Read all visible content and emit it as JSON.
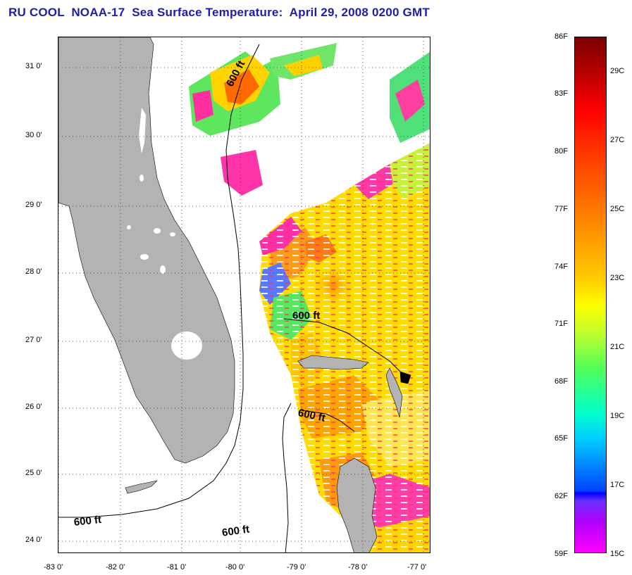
{
  "title": "RU COOL  NOAA-17  Sea Surface Temperature:  April 29, 2008 0200 GMT",
  "map": {
    "lat_labels": [
      "31 0'",
      "30 0'",
      "29 0'",
      "28 0'",
      "27 0'",
      "26 0'",
      "25 0'",
      "24 0'"
    ],
    "lon_labels": [
      "-83 0'",
      "-82 0'",
      "-81 0'",
      "-80 0'",
      "-79 0'",
      "-78 0'",
      "-77 0'"
    ],
    "contour_labels": [
      "600 ft",
      "600 ft",
      "600 ft",
      "600 ft",
      "600 ft"
    ],
    "colors": {
      "land": "#b3b3b3",
      "no_data": "#ffffff",
      "grid": "#444444"
    }
  },
  "colorbar": {
    "fahrenheit_labels": [
      "86F",
      "83F",
      "80F",
      "77F",
      "74F",
      "71F",
      "68F",
      "65F",
      "62F",
      "59F"
    ],
    "celsius_labels": [
      "29C",
      "27C",
      "25C",
      "23C",
      "21C",
      "19C",
      "17C",
      "15C"
    ]
  }
}
